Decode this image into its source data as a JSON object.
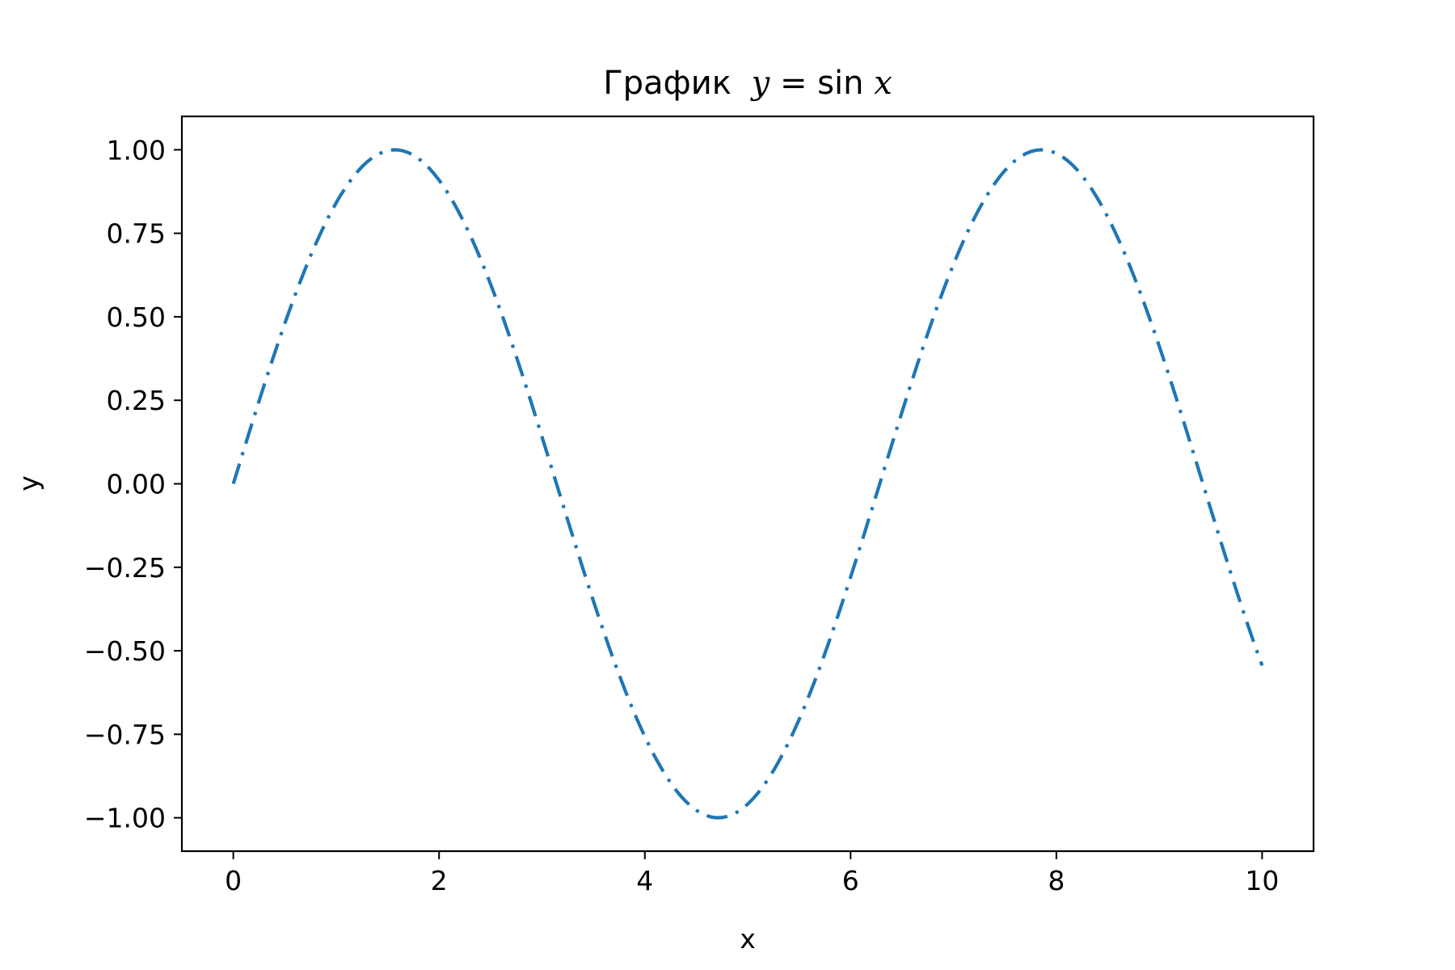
{
  "chart_data": {
    "type": "line",
    "title_prefix": "График",
    "title_math_y": "y",
    "title_math_eq": " = sin",
    "title_math_x": "x",
    "xlabel": "x",
    "ylabel": "y",
    "xlim": [
      -0.5,
      10.5
    ],
    "ylim": [
      -1.1,
      1.1
    ],
    "xticks": [
      0,
      2,
      4,
      6,
      8,
      10
    ],
    "xtick_labels": [
      "0",
      "2",
      "4",
      "6",
      "8",
      "10"
    ],
    "yticks": [
      1.0,
      0.75,
      0.5,
      0.25,
      0.0,
      -0.25,
      -0.5,
      -0.75,
      -1.0
    ],
    "ytick_labels": [
      "1.00",
      "0.75",
      "0.50",
      "0.25",
      "0.00",
      "−0.25",
      "−0.50",
      "−0.75",
      "−1.00"
    ],
    "grid": false,
    "series": [
      {
        "function": "sin(x)",
        "x_range": [
          0,
          10
        ],
        "color": "#1f77b4",
        "linestyle": "dashdot"
      }
    ]
  }
}
